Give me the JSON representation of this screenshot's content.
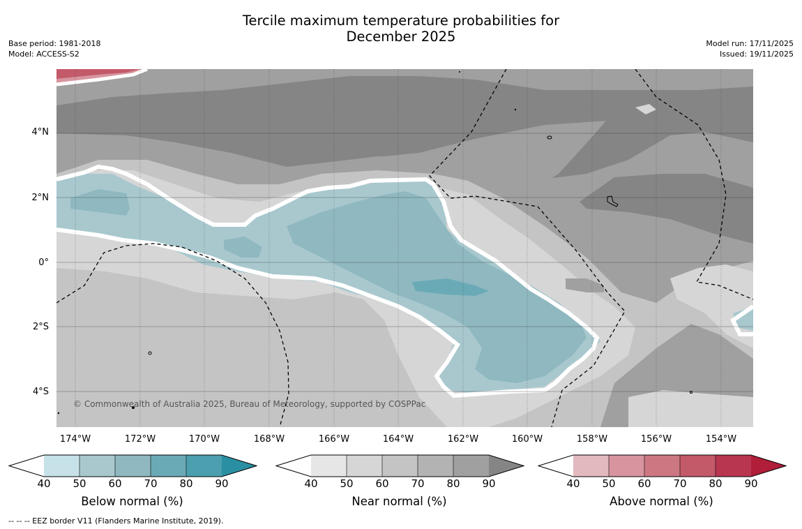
{
  "title_line1": "Tercile maximum temperature probabilities for",
  "title_line2": "December 2025",
  "base_period": "Base period: 1981-2018",
  "model": "Model: ACCESS-S2",
  "model_run": "Model run: 17/11/2025",
  "issued": "Issued: 19/11/2025",
  "copyright": "© Commonwealth of Australia 2025, Bureau of Meteorology, supported by COSPPac",
  "footer": "--  --  -- EEZ border V11 (Flanders Marine Institute, 2019).",
  "map": {
    "lat_labels": [
      "4°N",
      "2°N",
      "0°",
      "2°S",
      "4°S"
    ],
    "lon_labels": [
      "174°W",
      "172°W",
      "170°W",
      "168°W",
      "166°W",
      "164°W",
      "162°W",
      "160°W",
      "158°W",
      "156°W",
      "154°W"
    ]
  },
  "colorbars": [
    {
      "label": "Below normal (%)",
      "ticks": [
        "40",
        "50",
        "60",
        "70",
        "80",
        "90"
      ],
      "colors": [
        "#ffffff",
        "#c6e1e8",
        "#a8c8ce",
        "#8fb8c0",
        "#6aaab6",
        "#4b9fae",
        "#2b8fa3"
      ]
    },
    {
      "label": "Near normal (%)",
      "ticks": [
        "40",
        "50",
        "60",
        "70",
        "80",
        "90"
      ],
      "colors": [
        "#ffffff",
        "#e6e6e6",
        "#d6d6d6",
        "#c4c4c4",
        "#b3b3b3",
        "#a0a0a0",
        "#858585"
      ]
    },
    {
      "label": "Above normal (%)",
      "ticks": [
        "40",
        "50",
        "60",
        "70",
        "80",
        "90"
      ],
      "colors": [
        "#ffffff",
        "#e3b9c0",
        "#d8959f",
        "#cd7783",
        "#c35a6a",
        "#b93650",
        "#b01e3a"
      ]
    }
  ]
}
